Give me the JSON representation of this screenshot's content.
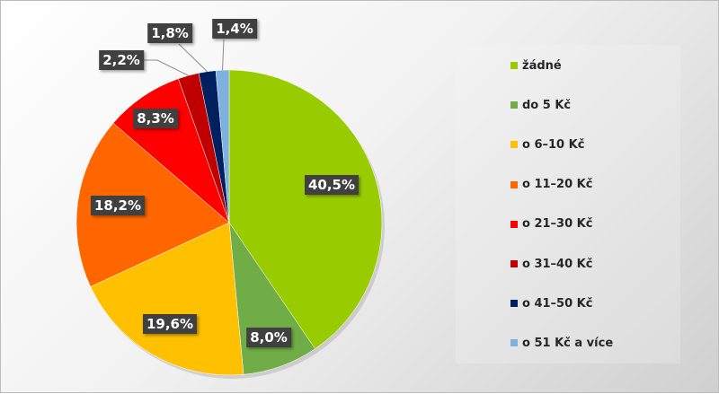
{
  "chart_data": {
    "type": "pie",
    "title": "",
    "start_angle": "top, clockwise",
    "legend_position": "right",
    "slices": [
      {
        "label": "žádné",
        "value": 40.5,
        "text": "40,5%",
        "color": "#99cc00"
      },
      {
        "label": "do 5 Kč",
        "value": 8.0,
        "text": "8,0%",
        "color": "#70ad47"
      },
      {
        "label": "o 6–10 Kč",
        "value": 19.6,
        "text": "19,6%",
        "color": "#ffc000"
      },
      {
        "label": "o 11–20 Kč",
        "value": 18.2,
        "text": "18,2%",
        "color": "#ff6600"
      },
      {
        "label": "o 21–30 Kč",
        "value": 8.3,
        "text": "8,3%",
        "color": "#ff0000"
      },
      {
        "label": "o 31–40 Kč",
        "value": 2.2,
        "text": "2,2%",
        "color": "#c00000"
      },
      {
        "label": "o 41–50 Kč",
        "value": 1.8,
        "text": "1,8%",
        "color": "#002060"
      },
      {
        "label": "o 51 Kč a více",
        "value": 1.4,
        "text": "1,4%",
        "color": "#7eb0e0"
      }
    ]
  }
}
